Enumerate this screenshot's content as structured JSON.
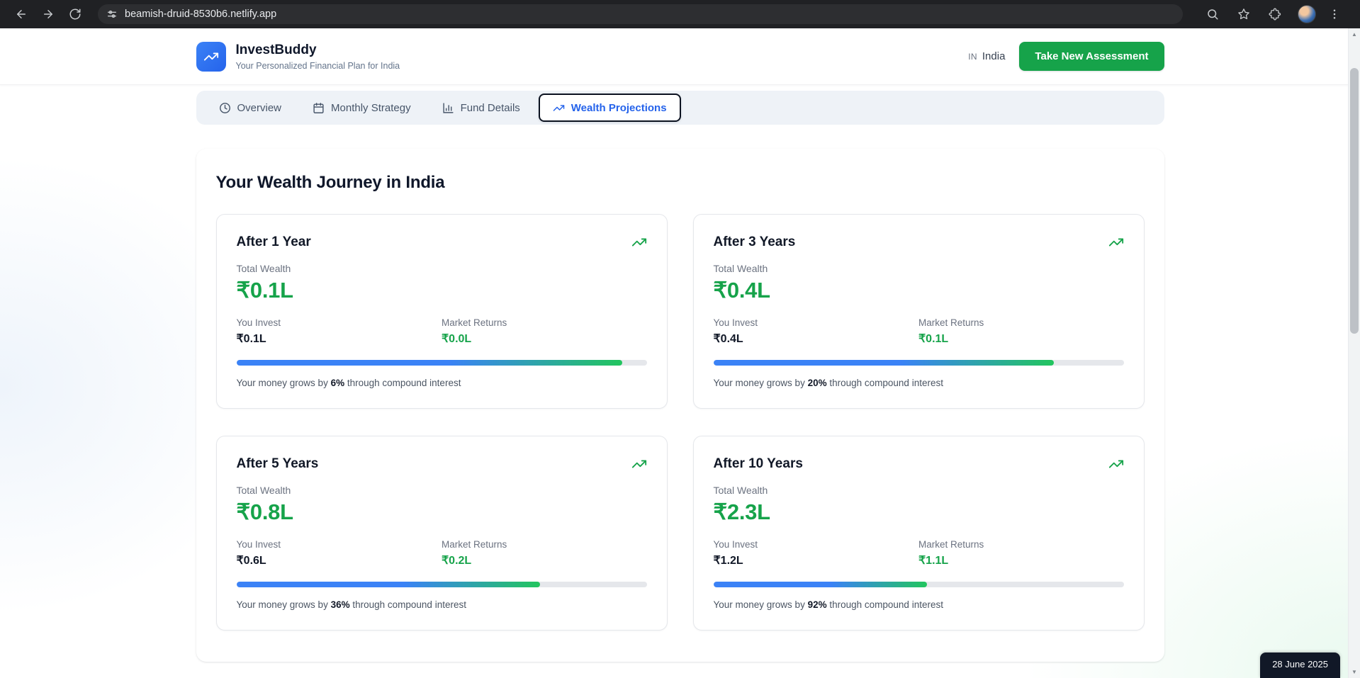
{
  "browser": {
    "url": "beamish-druid-8530b6.netlify.app"
  },
  "colors": {
    "accent_blue": "#2563eb",
    "success_green": "#16a34a",
    "bar_blue": "#3b82f6",
    "bar_green": "#22c55e"
  },
  "header": {
    "app_name": "InvestBuddy",
    "tagline": "Your Personalized Financial Plan for India",
    "country_code": "IN",
    "country_name": "India",
    "cta_label": "Take New Assessment"
  },
  "tabs": [
    {
      "label": "Overview"
    },
    {
      "label": "Monthly Strategy"
    },
    {
      "label": "Fund Details"
    },
    {
      "label": "Wealth Projections"
    }
  ],
  "main": {
    "title": "Your Wealth Journey in India"
  },
  "cards": [
    {
      "title": "After 1 Year",
      "total_label": "Total Wealth",
      "total": "₹0.1L",
      "invest_label": "You Invest",
      "invest": "₹0.1L",
      "returns_label": "Market Returns",
      "returns": "₹0.0L",
      "bar_pct": 94,
      "note_prefix": "Your money grows by ",
      "growth": "6%",
      "note_suffix": " through compound interest"
    },
    {
      "title": "After 3 Years",
      "total_label": "Total Wealth",
      "total": "₹0.4L",
      "invest_label": "You Invest",
      "invest": "₹0.4L",
      "returns_label": "Market Returns",
      "returns": "₹0.1L",
      "bar_pct": 83,
      "note_prefix": "Your money grows by ",
      "growth": "20%",
      "note_suffix": " through compound interest"
    },
    {
      "title": "After 5 Years",
      "total_label": "Total Wealth",
      "total": "₹0.8L",
      "invest_label": "You Invest",
      "invest": "₹0.6L",
      "returns_label": "Market Returns",
      "returns": "₹0.2L",
      "bar_pct": 74,
      "note_prefix": "Your money grows by ",
      "growth": "36%",
      "note_suffix": " through compound interest"
    },
    {
      "title": "After 10 Years",
      "total_label": "Total Wealth",
      "total": "₹2.3L",
      "invest_label": "You Invest",
      "invest": "₹1.2L",
      "returns_label": "Market Returns",
      "returns": "₹1.1L",
      "bar_pct": 52,
      "note_prefix": "Your money grows by ",
      "growth": "92%",
      "note_suffix": " through compound interest"
    }
  ],
  "date_badge": "28 June 2025"
}
